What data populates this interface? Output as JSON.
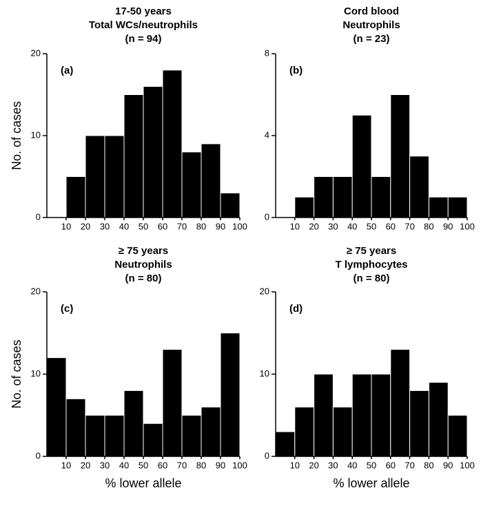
{
  "chart_data": [
    {
      "type": "histogram",
      "title": [
        "17-50 years",
        "Total WCs/neutrophils",
        "(n = 94)"
      ],
      "label": "(a)",
      "ylabel": "No. of cases",
      "bins": [
        10,
        20,
        30,
        40,
        50,
        60,
        70,
        80,
        90,
        100
      ],
      "values": [
        5,
        10,
        10,
        15,
        16,
        18,
        8,
        9,
        3
      ],
      "color": "#000000",
      "xlim": [
        0,
        100
      ],
      "xticks": [
        10,
        20,
        30,
        40,
        50,
        60,
        70,
        80,
        90,
        100
      ],
      "ylim": [
        0,
        20
      ],
      "yticks": [
        0,
        10,
        20
      ]
    },
    {
      "type": "histogram",
      "title": [
        "Cord blood",
        "Neutrophils",
        "(n = 23)"
      ],
      "label": "(b)",
      "bins": [
        10,
        20,
        30,
        40,
        50,
        60,
        70,
        80,
        90,
        100
      ],
      "values": [
        1,
        2,
        2,
        5,
        2,
        6,
        3,
        1,
        1
      ],
      "color": "#000000",
      "xlim": [
        0,
        100
      ],
      "xticks": [
        10,
        20,
        30,
        40,
        50,
        60,
        70,
        80,
        90,
        100
      ],
      "ylim": [
        0,
        8
      ],
      "yticks": [
        0,
        4,
        8
      ]
    },
    {
      "type": "histogram",
      "title": [
        "≥ 75 years",
        "Neutrophils",
        "(n = 80)"
      ],
      "label": "(c)",
      "ylabel": "No. of cases",
      "xlabel": "% lower allele",
      "bins": [
        0,
        10,
        20,
        30,
        40,
        50,
        60,
        70,
        80,
        90,
        100
      ],
      "values": [
        12,
        7,
        5,
        5,
        8,
        4,
        13,
        5,
        6,
        15
      ],
      "color": "#000000",
      "xlim": [
        0,
        100
      ],
      "xticks": [
        10,
        20,
        30,
        40,
        50,
        60,
        70,
        80,
        90,
        100
      ],
      "ylim": [
        0,
        20
      ],
      "yticks": [
        0,
        10,
        20
      ]
    },
    {
      "type": "histogram",
      "title": [
        "≥ 75 years",
        "T lymphocytes",
        "(n = 80)"
      ],
      "label": "(d)",
      "xlabel": "% lower allele",
      "bins": [
        0,
        10,
        20,
        30,
        40,
        50,
        60,
        70,
        80,
        90,
        100
      ],
      "values": [
        3,
        6,
        10,
        6,
        10,
        10,
        13,
        8,
        9,
        5
      ],
      "color": "#000000",
      "xlim": [
        0,
        100
      ],
      "xticks": [
        10,
        20,
        30,
        40,
        50,
        60,
        70,
        80,
        90,
        100
      ],
      "ylim": [
        0,
        20
      ],
      "yticks": [
        0,
        10,
        20
      ]
    }
  ]
}
